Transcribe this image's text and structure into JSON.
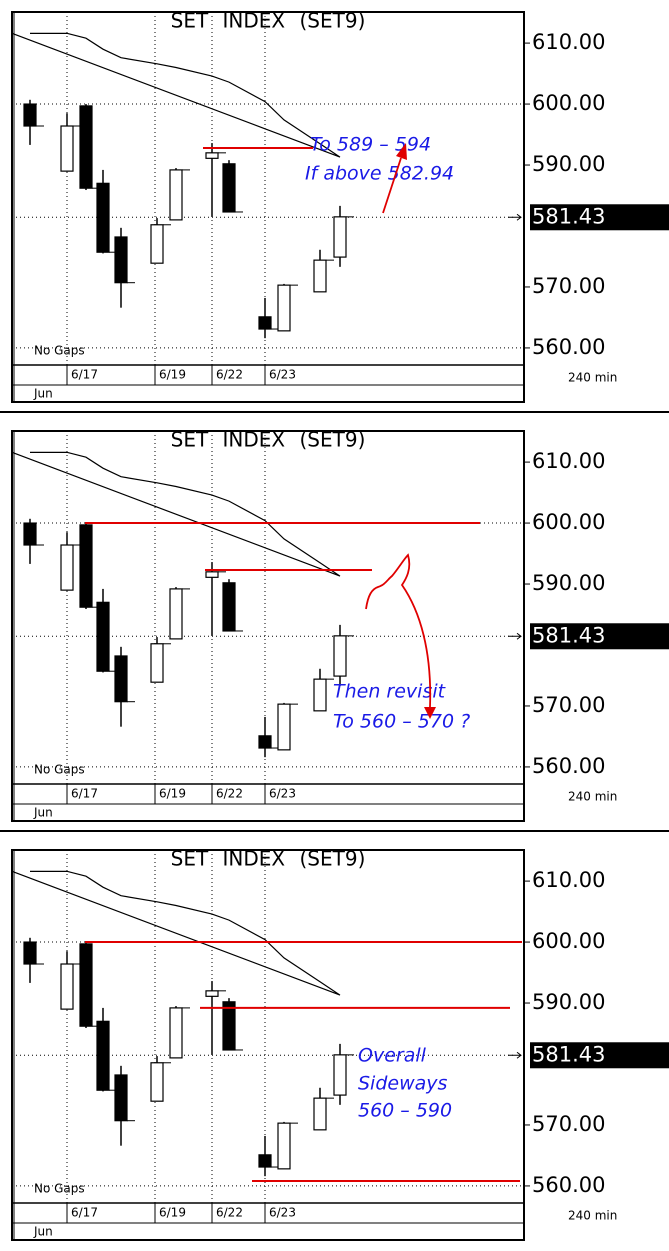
{
  "chart_data": [
    {
      "type": "candlestick",
      "title": "SET INDEX (SET9)",
      "open": [
        600,
        589,
        599.7,
        587,
        578.2,
        573.9,
        581,
        591.1,
        590.2,
        565.1,
        562.8,
        569.2,
        574.9
      ],
      "high": [
        600.7,
        598.5,
        600,
        589.2,
        579.7,
        581.3,
        589.5,
        593.6,
        590.8,
        568.2,
        570.5,
        576.1,
        583.3
      ],
      "low": [
        593.3,
        588.9,
        585.9,
        575.5,
        566.6,
        573.9,
        581,
        581.5,
        582.3,
        561.6,
        562.8,
        569.2,
        573.3
      ],
      "close": [
        596.4,
        596.4,
        586.2,
        575.7,
        570.7,
        580.2,
        589.2,
        592,
        582.3,
        563.1,
        570.3,
        574.4,
        581.5
      ],
      "ma": [
        611.6,
        611.6,
        610.8,
        609,
        607.6,
        606.6,
        606,
        604.6,
        603.6,
        600.4,
        597.4,
        593.5,
        591.3
      ],
      "x_labels": [
        "6/17",
        "6/19",
        "6/22",
        "6/23"
      ],
      "month": "Jun",
      "note": "No Gaps",
      "interval": "240 min",
      "ylim": [
        557.2,
        615.1
      ],
      "yticks": [
        {
          "value": 560,
          "label": "560.00"
        },
        {
          "value": 570,
          "label": "570.00"
        },
        {
          "value": 590,
          "label": "590.00"
        },
        {
          "value": 600,
          "label": "600.00"
        },
        {
          "value": 610,
          "label": "610.00"
        }
      ],
      "last_price": 581.43,
      "levels": [
        592.8
      ],
      "annotations": [
        "To 589 – 594",
        "If above 582.94"
      ]
    },
    {
      "type": "candlestick",
      "title": "SET INDEX (SET9)",
      "open": [
        600,
        589,
        599.7,
        587,
        578.2,
        573.9,
        581,
        591.1,
        590.2,
        565.1,
        562.8,
        569.2,
        574.9
      ],
      "high": [
        600.7,
        598.5,
        600,
        589.2,
        579.7,
        581.3,
        589.5,
        593.6,
        590.8,
        568.2,
        570.5,
        576.1,
        583.3
      ],
      "low": [
        593.3,
        588.9,
        585.9,
        575.5,
        566.6,
        573.9,
        581,
        581.5,
        582.3,
        561.6,
        562.8,
        569.2,
        573.3
      ],
      "close": [
        596.4,
        596.4,
        586.2,
        575.7,
        570.7,
        580.2,
        589.2,
        592,
        582.3,
        563.1,
        570.3,
        574.4,
        581.5
      ],
      "ma": [
        611.6,
        611.6,
        610.8,
        609,
        607.6,
        606.6,
        606,
        604.6,
        603.6,
        600.4,
        597.4,
        593.5,
        591.3
      ],
      "x_labels": [
        "6/17",
        "6/19",
        "6/22",
        "6/23"
      ],
      "month": "Jun",
      "note": "No Gaps",
      "interval": "240 min",
      "ylim": [
        557.2,
        615.1
      ],
      "yticks": [
        {
          "value": 560,
          "label": "560.00"
        },
        {
          "value": 570,
          "label": "570.00"
        },
        {
          "value": 590,
          "label": "590.00"
        },
        {
          "value": 600,
          "label": "600.00"
        },
        {
          "value": 610,
          "label": "610.00"
        }
      ],
      "last_price": 581.43,
      "levels": [
        600,
        592.3
      ],
      "annotations": [
        "Then revisit",
        "To 560 – 570 ?"
      ]
    },
    {
      "type": "candlestick",
      "title": "SET INDEX (SET9)",
      "open": [
        600,
        589,
        599.7,
        587,
        578.2,
        573.9,
        581,
        591.1,
        590.2,
        565.1,
        562.8,
        569.2,
        574.9
      ],
      "high": [
        600.7,
        598.5,
        600,
        589.2,
        579.7,
        581.3,
        589.5,
        593.6,
        590.8,
        568.2,
        570.5,
        576.1,
        583.3
      ],
      "low": [
        593.3,
        588.9,
        585.9,
        575.5,
        566.6,
        573.9,
        581,
        581.5,
        582.3,
        561.6,
        562.8,
        569.2,
        573.3
      ],
      "close": [
        596.4,
        596.4,
        586.2,
        575.7,
        570.7,
        580.2,
        589.2,
        592,
        582.3,
        563.1,
        570.3,
        574.4,
        581.5
      ],
      "ma": [
        611.6,
        611.6,
        610.8,
        609,
        607.6,
        606.6,
        606,
        604.6,
        603.6,
        600.4,
        597.4,
        593.5,
        591.3
      ],
      "x_labels": [
        "6/17",
        "6/19",
        "6/22",
        "6/23"
      ],
      "month": "Jun",
      "note": "No Gaps",
      "interval": "240 min",
      "ylim": [
        557.2,
        615.1
      ],
      "yticks": [
        {
          "value": 560,
          "label": "560.00"
        },
        {
          "value": 570,
          "label": "570.00"
        },
        {
          "value": 590,
          "label": "590.00"
        },
        {
          "value": 600,
          "label": "600.00"
        },
        {
          "value": 610,
          "label": "610.00"
        }
      ],
      "last_price": 581.43,
      "levels": [
        600,
        589.2,
        560.8
      ],
      "annotations": [
        "Overall",
        "Sideways",
        "560 – 590"
      ]
    }
  ]
}
